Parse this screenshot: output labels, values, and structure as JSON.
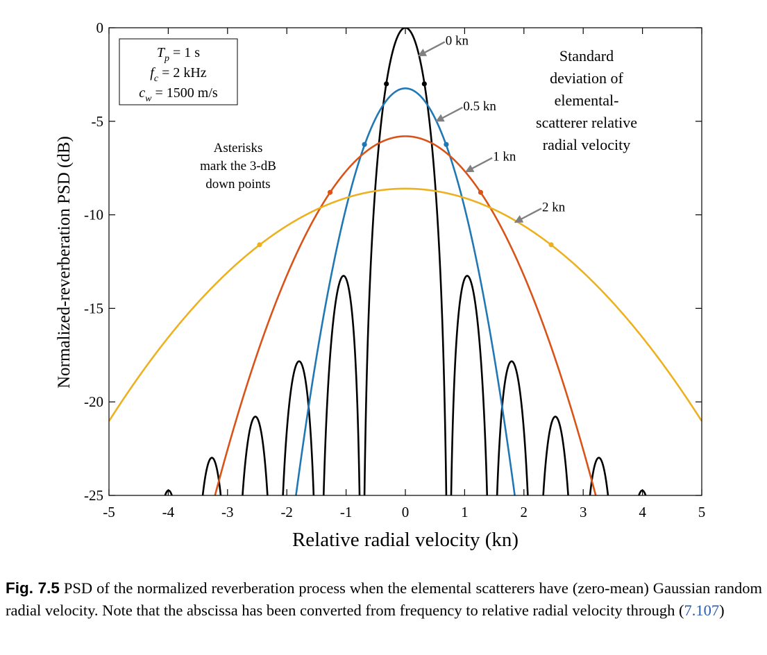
{
  "chart_data": {
    "type": "line",
    "xlabel": "Relative radial velocity (kn)",
    "ylabel": "Normalized-reverberation PSD (dB)",
    "xlim": [
      -5,
      5
    ],
    "ylim": [
      -25,
      0
    ],
    "xticks": [
      "-5",
      "-4",
      "-3",
      "-2",
      "-1",
      "0",
      "1",
      "2",
      "3",
      "4",
      "5"
    ],
    "yticks": [
      "0",
      "-5",
      "-10",
      "-15",
      "-20",
      "-25"
    ],
    "grid": false,
    "params_box": {
      "lines": [
        {
          "sym": "T",
          "sub": "p",
          "rest": " = 1 s"
        },
        {
          "sym": "f",
          "sub": "c",
          "rest": " = 2 kHz"
        },
        {
          "sym": "c",
          "sub": "w",
          "rest": " = 1500 m/s"
        }
      ]
    },
    "std_annotation": [
      "Standard",
      "deviation of",
      "elemental-",
      "scatterer relative",
      "radial velocity"
    ],
    "asterisk_annotation": [
      "Asterisks",
      "mark the 3-dB",
      "down points"
    ],
    "series": [
      {
        "name": "0 kn",
        "color": "#000000",
        "model": "sinc2",
        "null_spacing": 0.729,
        "three_db_points": [
          [
            -0.32,
            -3.0
          ],
          [
            0.32,
            -3.0
          ]
        ]
      },
      {
        "name": "0.5 kn",
        "color": "#1f77b4",
        "model": "gauss",
        "peak_db": -3.24,
        "sigma_kn": 0.583,
        "three_db_points": [
          [
            -0.69,
            -6.24
          ],
          [
            0.69,
            -6.24
          ]
        ]
      },
      {
        "name": "1 kn",
        "color": "#d95319",
        "model": "gauss",
        "peak_db": -5.8,
        "sigma_kn": 1.08,
        "three_db_points": [
          [
            -1.27,
            -8.8
          ],
          [
            1.27,
            -8.8
          ]
        ]
      },
      {
        "name": "2 kn",
        "color": "#edb120",
        "model": "gauss",
        "peak_db": -8.6,
        "sigma_kn": 2.09,
        "three_db_points": [
          [
            -2.46,
            -11.6
          ],
          [
            2.46,
            -11.6
          ]
        ]
      }
    ],
    "callouts": [
      {
        "series": "0 kn",
        "text": "0 kn",
        "tip": [
          0.22,
          -1.5
        ]
      },
      {
        "series": "0.5 kn",
        "text": "0.5 kn",
        "tip": [
          0.52,
          -5.0
        ]
      },
      {
        "series": "1 kn",
        "text": "1 kn",
        "tip": [
          1.02,
          -7.7
        ]
      },
      {
        "series": "2 kn",
        "text": "2 kn",
        "tip": [
          1.85,
          -10.4
        ]
      }
    ]
  },
  "caption": {
    "fig_label": "Fig. 7.5",
    "text": "PSD of the normalized reverberation process when the elemental scatterers have (zero-mean) Gaussian random radial velocity. Note that the abscissa has been converted from frequency to relative radial velocity through (",
    "link": "7.107",
    "end": ")"
  }
}
